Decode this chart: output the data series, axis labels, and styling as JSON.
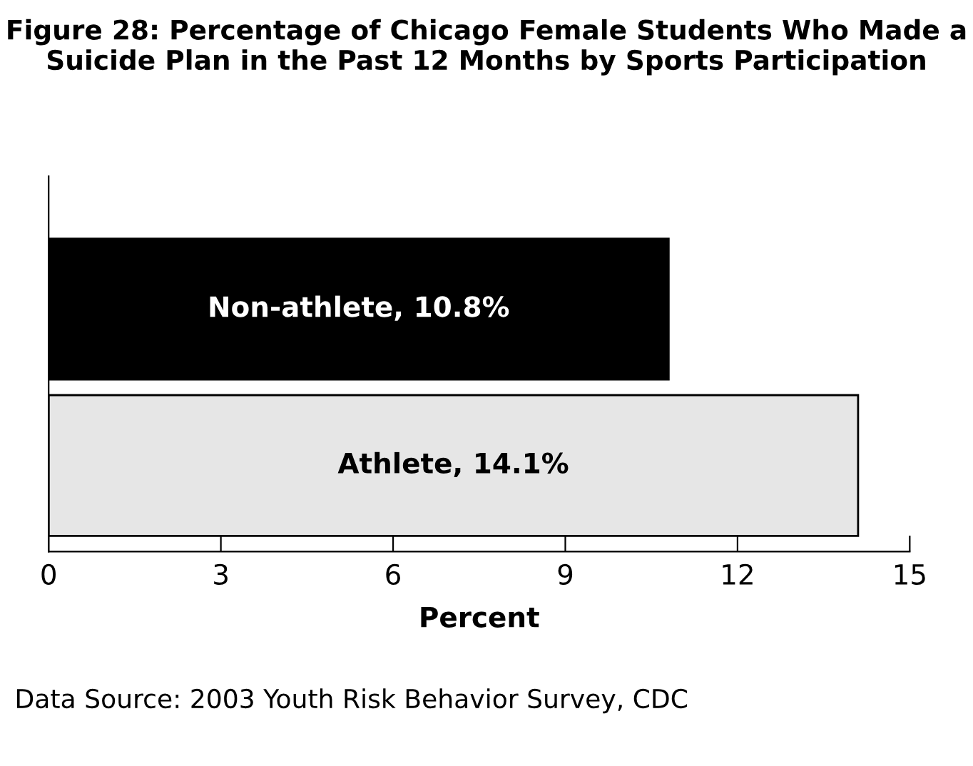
{
  "chart_data": {
    "type": "bar",
    "orientation": "horizontal",
    "title": "Figure 28: Percentage of Chicago Female Students Who Made a Suicide Plan in the Past 12 Months by Sports Participation",
    "xlabel": "Percent",
    "categories": [
      null,
      null
    ],
    "values": [
      10.8,
      14.1
    ],
    "colors": [
      "#000000",
      "#e6e6e6"
    ],
    "value_labels": [
      "Non-athlete, 10.8%",
      "Athlete, 14.1%"
    ],
    "xlim": [
      0,
      15
    ],
    "xticks": [
      0,
      3,
      6,
      9,
      12,
      15
    ],
    "grid": false,
    "legend": false,
    "annotations": [
      "Data Source: 2003 Youth Risk Behavior Survey, CDC"
    ]
  }
}
